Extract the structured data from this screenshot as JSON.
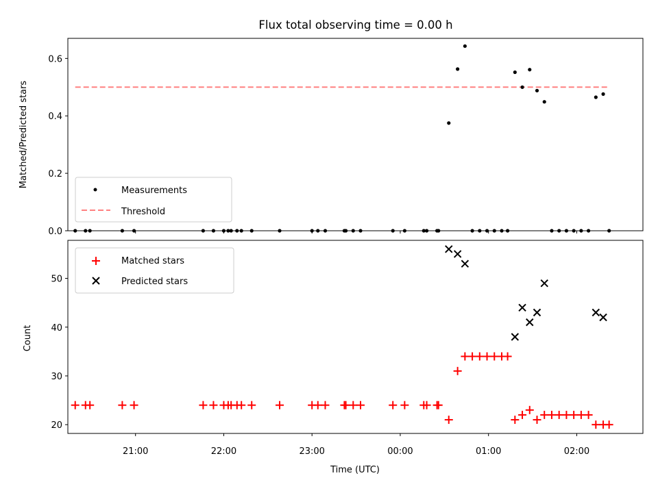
{
  "chart_data": [
    {
      "type": "scatter",
      "title": "Flux total observing time = 0.00 h",
      "ylabel": "Matched/Predicted stars",
      "xlabel": "",
      "xlim": [
        "20:14",
        "02:45"
      ],
      "ylim": [
        0,
        0.67
      ],
      "yticks": [
        0.0,
        0.2,
        0.4,
        0.6
      ],
      "ytick_labels": [
        "0.0",
        "0.2",
        "0.4",
        "0.6"
      ],
      "xticks": [
        "21:00",
        "22:00",
        "23:00",
        "00:00",
        "01:00",
        "02:00"
      ],
      "show_xtick_labels": false,
      "grid": false,
      "legend": {
        "placement": "lower-left",
        "entries": [
          "Measurements",
          "Threshold"
        ]
      },
      "threshold": {
        "name": "Threshold",
        "value": 0.5,
        "x_start": "20:19",
        "x_end": "02:22",
        "color": "#ff8080",
        "style": "dashed"
      },
      "series": [
        {
          "name": "Measurements",
          "color": "#000000",
          "marker": "dot",
          "x": [
            "20:19",
            "20:26",
            "20:29",
            "20:51",
            "20:59",
            "21:46",
            "21:53",
            "22:00",
            "22:03",
            "22:05",
            "22:09",
            "22:12",
            "22:19",
            "22:38",
            "23:00",
            "23:04",
            "23:09",
            "23:22",
            "23:23",
            "23:28",
            "23:33",
            "23:55",
            "00:03",
            "00:16",
            "00:18",
            "00:25",
            "00:26",
            "00:33",
            "00:39",
            "00:44",
            "00:49",
            "00:54",
            "00:59",
            "01:04",
            "01:09",
            "01:13",
            "01:18",
            "01:23",
            "01:28",
            "01:33",
            "01:38",
            "01:43",
            "01:48",
            "01:53",
            "01:58",
            "02:03",
            "02:08",
            "02:13",
            "02:18",
            "02:22"
          ],
          "y": [
            0,
            0,
            0,
            0,
            0,
            0,
            0,
            0,
            0,
            0,
            0,
            0,
            0,
            0,
            0,
            0,
            0,
            0,
            0,
            0,
            0,
            0,
            0,
            0,
            0,
            0,
            0,
            0.375,
            0.563,
            0.643,
            0,
            0,
            0,
            0,
            0,
            0,
            0.552,
            0.5,
            0.561,
            0.488,
            0.449,
            0,
            0,
            0,
            0,
            0,
            0,
            0.465,
            0.476,
            0
          ]
        }
      ]
    },
    {
      "type": "scatter",
      "title": "",
      "ylabel": "Count",
      "xlabel": "Time (UTC)",
      "xlim": [
        "20:14",
        "02:45"
      ],
      "ylim": [
        18.2,
        57.8
      ],
      "yticks": [
        20,
        30,
        40,
        50
      ],
      "ytick_labels": [
        "20",
        "30",
        "40",
        "50"
      ],
      "xticks": [
        "21:00",
        "22:00",
        "23:00",
        "00:00",
        "01:00",
        "02:00"
      ],
      "xtick_labels": [
        "21:00",
        "22:00",
        "23:00",
        "00:00",
        "01:00",
        "02:00"
      ],
      "grid": false,
      "legend": {
        "placement": "upper-left",
        "entries": [
          "Matched stars",
          "Predicted stars"
        ]
      },
      "series": [
        {
          "name": "Matched stars",
          "color": "#ff0000",
          "marker": "plus",
          "x": [
            "20:19",
            "20:26",
            "20:29",
            "20:51",
            "20:59",
            "21:46",
            "21:53",
            "22:00",
            "22:03",
            "22:05",
            "22:09",
            "22:12",
            "22:19",
            "22:38",
            "23:00",
            "23:04",
            "23:09",
            "23:22",
            "23:23",
            "23:28",
            "23:33",
            "23:55",
            "00:03",
            "00:16",
            "00:18",
            "00:25",
            "00:26",
            "00:33",
            "00:39",
            "00:44",
            "00:49",
            "00:54",
            "00:59",
            "01:04",
            "01:09",
            "01:13",
            "01:18",
            "01:23",
            "01:28",
            "01:33",
            "01:38",
            "01:43",
            "01:48",
            "01:53",
            "01:58",
            "02:03",
            "02:08",
            "02:13",
            "02:18",
            "02:22"
          ],
          "y": [
            24,
            24,
            24,
            24,
            24,
            24,
            24,
            24,
            24,
            24,
            24,
            24,
            24,
            24,
            24,
            24,
            24,
            24,
            24,
            24,
            24,
            24,
            24,
            24,
            24,
            24,
            24,
            21,
            31,
            34,
            34,
            34,
            34,
            34,
            34,
            34,
            21,
            22,
            23,
            21,
            22,
            22,
            22,
            22,
            22,
            22,
            22,
            20,
            20,
            20
          ]
        },
        {
          "name": "Predicted stars",
          "color": "#000000",
          "marker": "x",
          "x": [
            "00:33",
            "00:39",
            "00:44",
            "01:18",
            "01:23",
            "01:28",
            "01:33",
            "01:38",
            "02:13",
            "02:18"
          ],
          "y": [
            56,
            55,
            53,
            38,
            44,
            41,
            43,
            49,
            43,
            42
          ]
        }
      ]
    }
  ]
}
